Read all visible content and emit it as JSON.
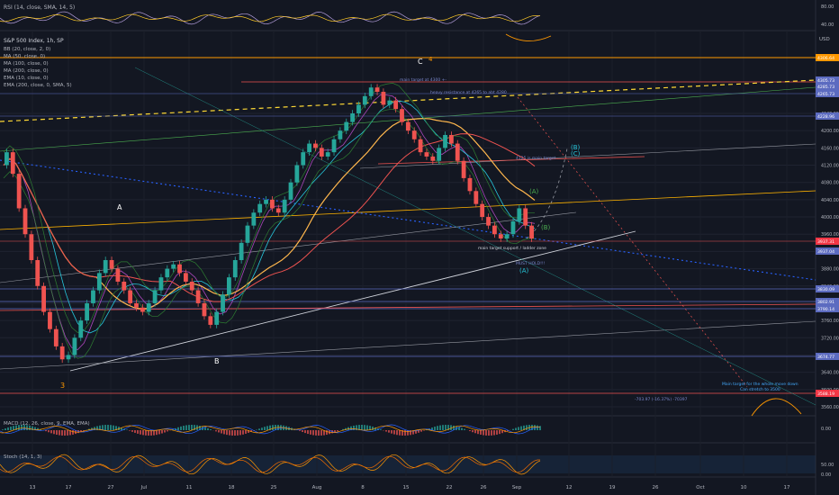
{
  "chart_data": {
    "type": "candlestick",
    "title": "S&P 500 Index, 1h, SP",
    "currency": "USD",
    "indicator_legend": [
      "BB (20, close, 2, 0)",
      "MA (50, close, 0)",
      "MA (100, close, 0)",
      "MA (200, close, 0)",
      "EMA (10, close, 0)",
      "EMA (200, close, 0, SMA, 5)"
    ],
    "rsi_panel": {
      "title": "RSI (14, close, SMA, 14, 5)",
      "ticks": [
        "80.00",
        "40.00"
      ]
    },
    "macd_panel": {
      "title": "MACD (12, 26, close, 9, EMA, EMA)",
      "ticks": [
        "0.00"
      ]
    },
    "stoch_panel": {
      "title": "Stoch (14, 1, 3)",
      "ticks": [
        "50.00",
        "0.00"
      ]
    },
    "price_axis_ticks": [
      "4240.00",
      "4200.00",
      "4160.00",
      "4120.00",
      "4080.00",
      "4040.00",
      "4000.00",
      "3960.00",
      "3920.00",
      "3880.00",
      "3840.00",
      "3800.00",
      "3760.00",
      "3720.00",
      "3680.00",
      "3640.00",
      "3600.00",
      "3560.00"
    ],
    "price_badges": [
      {
        "text": "4306.64",
        "color": "#ff9800"
      },
      {
        "text": "4305.73",
        "color": "#5c6bc0"
      },
      {
        "text": "4285.73",
        "color": "#5c6bc0"
      },
      {
        "text": "4265.73",
        "color": "#5c6bc0"
      },
      {
        "text": "4228.96",
        "color": "#5c6bc0"
      },
      {
        "text": "3937.31",
        "color": "#f23645"
      },
      {
        "text": "3937.04",
        "color": "#5c6bc0"
      },
      {
        "text": "3830.09",
        "color": "#5c6bc0"
      },
      {
        "text": "3802.91",
        "color": "#5c6bc0"
      },
      {
        "text": "3790.14",
        "color": "#5c6bc0"
      },
      {
        "text": "3674.77",
        "color": "#5c6bc0"
      },
      {
        "text": "3588.19",
        "color": "#f23645"
      }
    ],
    "time_axis_labels": [
      "13",
      "17",
      "27",
      "Jul",
      "11",
      "18",
      "25",
      "Aug",
      "8",
      "15",
      "22",
      "26",
      "Sep",
      "12",
      "19",
      "26",
      "Oct",
      "10",
      "17"
    ],
    "wave_labels": [
      "3",
      "4",
      "A",
      "B",
      "C",
      "(A)",
      "(B)",
      "(B)",
      "(C)",
      "(A)"
    ],
    "annotations": [
      "main target at 4300 +-",
      "heavy resistance at 4265 to abt 4280",
      "4125 is main target",
      "main target support / ladder zone",
      "MUST HOLD!!!",
      "Main target for the whole move down",
      "Can stretch to 3500",
      "-703.97 (-16.37%) -70397"
    ],
    "close_series": [
      4120,
      4150,
      4100,
      4020,
      3960,
      3900,
      3840,
      3780,
      3740,
      3700,
      3670,
      3680,
      3720,
      3760,
      3800,
      3830,
      3870,
      3900,
      3880,
      3850,
      3830,
      3800,
      3790,
      3780,
      3800,
      3830,
      3860,
      3880,
      3890,
      3870,
      3850,
      3830,
      3800,
      3770,
      3750,
      3780,
      3820,
      3860,
      3900,
      3940,
      3980,
      4010,
      4030,
      4040,
      4020,
      4010,
      4040,
      4080,
      4120,
      4150,
      4170,
      4160,
      4140,
      4150,
      4180,
      4200,
      4220,
      4240,
      4260,
      4280,
      4300,
      4290,
      4260,
      4270,
      4250,
      4220,
      4200,
      4180,
      4150,
      4140,
      4130,
      4160,
      4190,
      4170,
      4130,
      4090,
      4060,
      4030,
      4000,
      3980,
      3960,
      3950,
      3960,
      3990,
      4020,
      3980,
      3950
    ]
  }
}
